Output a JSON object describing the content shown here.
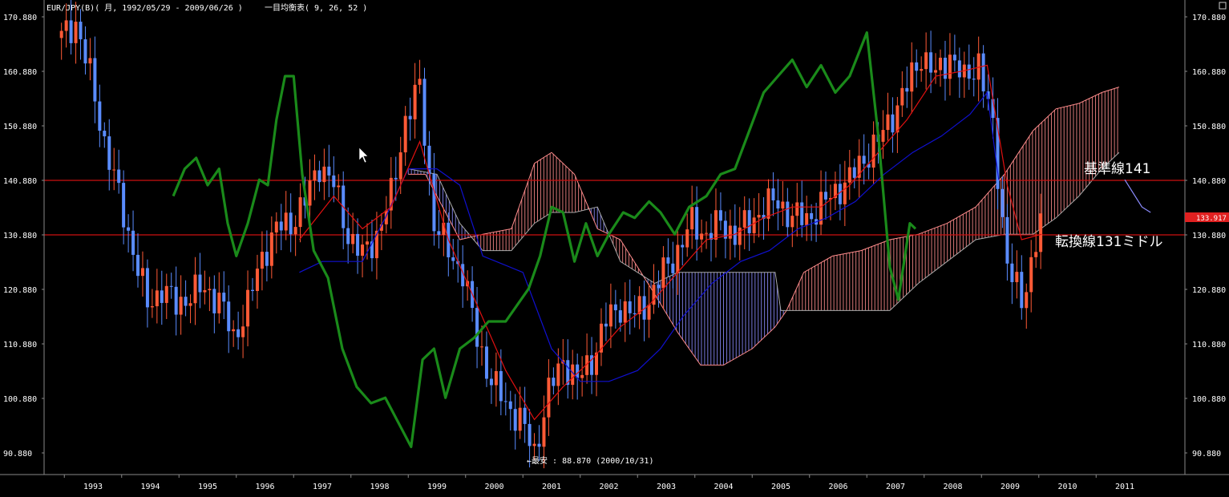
{
  "header": {
    "title": "EUR/JPY(B)( 月, 1992/05/29 - 2009/06/26 )",
    "indicator": "一目均衡表( 9, 26, 52 )"
  },
  "colors": {
    "background": "#000000",
    "up_candle": "#ff5a36",
    "down_candle": "#5a8cff",
    "tenkan": "#e01010",
    "kijun": "#1010d0",
    "chikou": "#1a8a1a",
    "cloud_red": "#ff8c8c",
    "cloud_blue": "#8c8cff",
    "hline": "#cc1111",
    "price_tag": "#e02020"
  },
  "annotations": {
    "kijun_label": "基準線141",
    "tenkan_label": "転換線131ミドル",
    "low_label": "←最安 : 88.870 (2000/10/31)",
    "current_price": "133.917"
  },
  "chart_data": {
    "type": "candlestick",
    "title": "EUR/JPY(B)( 月, 1992/05/29 - 2009/06/26 )",
    "y_ticks": [
      "170.880",
      "160.880",
      "150.880",
      "140.880",
      "130.880",
      "120.880",
      "110.880",
      "100.880",
      "90.880"
    ],
    "ylim": [
      86,
      173
    ],
    "x_ticks": [
      "1993",
      "1994",
      "1995",
      "1996",
      "1997",
      "1998",
      "1999",
      "2000",
      "2001",
      "2002",
      "2003",
      "2004",
      "2005",
      "2006",
      "2007",
      "2008",
      "2009",
      "2010",
      "2011"
    ],
    "horizontal_lines": [
      140.88,
      130.88
    ],
    "current_price": 133.917,
    "low": {
      "value": 88.87,
      "date": "2000/10/31"
    },
    "close_series": [
      [
        1992.45,
        167
      ],
      [
        1992.7,
        170
      ],
      [
        1992.95,
        160
      ],
      [
        1993.2,
        148
      ],
      [
        1993.45,
        138
      ],
      [
        1993.7,
        128
      ],
      [
        1993.95,
        118
      ],
      [
        1994.2,
        121
      ],
      [
        1994.45,
        118
      ],
      [
        1994.7,
        120
      ],
      [
        1994.95,
        121
      ],
      [
        1995.2,
        119
      ],
      [
        1995.45,
        112
      ],
      [
        1995.7,
        118
      ],
      [
        1995.95,
        127
      ],
      [
        1996.2,
        132
      ],
      [
        1996.45,
        133
      ],
      [
        1996.7,
        137
      ],
      [
        1996.95,
        144
      ],
      [
        1997.2,
        140
      ],
      [
        1997.45,
        131
      ],
      [
        1997.7,
        127
      ],
      [
        1997.95,
        131
      ],
      [
        1998.2,
        138
      ],
      [
        1998.45,
        152
      ],
      [
        1998.7,
        158
      ],
      [
        1998.95,
        133
      ],
      [
        1999.2,
        128
      ],
      [
        1999.45,
        124
      ],
      [
        1999.7,
        112
      ],
      [
        1999.95,
        104
      ],
      [
        2000.2,
        100
      ],
      [
        2000.45,
        97
      ],
      [
        2000.7,
        91
      ],
      [
        2000.95,
        102
      ],
      [
        2001.2,
        108
      ],
      [
        2001.45,
        104
      ],
      [
        2001.7,
        108
      ],
      [
        2001.95,
        115
      ],
      [
        2002.2,
        118
      ],
      [
        2002.45,
        116
      ],
      [
        2002.7,
        119
      ],
      [
        2002.95,
        124
      ],
      [
        2003.2,
        128
      ],
      [
        2003.45,
        133
      ],
      [
        2003.7,
        131
      ],
      [
        2003.95,
        133
      ],
      [
        2004.2,
        131
      ],
      [
        2004.45,
        133
      ],
      [
        2004.7,
        136
      ],
      [
        2004.95,
        137
      ],
      [
        2005.2,
        134
      ],
      [
        2005.45,
        134
      ],
      [
        2005.7,
        136
      ],
      [
        2005.95,
        139
      ],
      [
        2006.2,
        141
      ],
      [
        2006.45,
        145
      ],
      [
        2006.7,
        148
      ],
      [
        2006.95,
        153
      ],
      [
        2007.2,
        158
      ],
      [
        2007.45,
        164
      ],
      [
        2007.7,
        160
      ],
      [
        2007.95,
        164
      ],
      [
        2008.2,
        159
      ],
      [
        2008.45,
        163
      ],
      [
        2008.7,
        150
      ],
      [
        2008.95,
        126
      ],
      [
        2009.2,
        118
      ],
      [
        2009.45,
        130
      ],
      [
        2009.55,
        133.9
      ]
    ],
    "tenkan_series": [
      [
        1996.6,
        130
      ],
      [
        1997.2,
        138
      ],
      [
        1997.7,
        132
      ],
      [
        1998.2,
        136
      ],
      [
        1998.7,
        148
      ],
      [
        1999.2,
        130
      ],
      [
        1999.7,
        118
      ],
      [
        2000.2,
        106
      ],
      [
        2000.7,
        97
      ],
      [
        2001.2,
        103
      ],
      [
        2001.7,
        108
      ],
      [
        2002.2,
        114
      ],
      [
        2002.7,
        118
      ],
      [
        2003.2,
        124
      ],
      [
        2003.7,
        130
      ],
      [
        2004.2,
        131
      ],
      [
        2004.7,
        134
      ],
      [
        2005.2,
        136
      ],
      [
        2005.7,
        136
      ],
      [
        2006.2,
        140
      ],
      [
        2006.7,
        146
      ],
      [
        2007.2,
        152
      ],
      [
        2007.7,
        160
      ],
      [
        2008.2,
        161
      ],
      [
        2008.6,
        162
      ],
      [
        2008.95,
        140
      ],
      [
        2009.2,
        130
      ],
      [
        2009.55,
        131
      ]
    ],
    "kijun_series": [
      [
        1996.6,
        124
      ],
      [
        1997.0,
        126
      ],
      [
        1997.7,
        126
      ],
      [
        1998.1,
        134
      ],
      [
        1998.5,
        143
      ],
      [
        1999.0,
        143
      ],
      [
        1999.4,
        140
      ],
      [
        1999.8,
        127
      ],
      [
        2000.5,
        124
      ],
      [
        2001.0,
        110
      ],
      [
        2001.5,
        104
      ],
      [
        2002.0,
        104
      ],
      [
        2002.5,
        106
      ],
      [
        2002.9,
        110
      ],
      [
        2003.3,
        116
      ],
      [
        2003.8,
        122
      ],
      [
        2004.3,
        126
      ],
      [
        2004.8,
        128
      ],
      [
        2005.3,
        132
      ],
      [
        2005.8,
        134
      ],
      [
        2006.3,
        137
      ],
      [
        2006.8,
        142
      ],
      [
        2007.3,
        146
      ],
      [
        2007.8,
        149
      ],
      [
        2008.3,
        153
      ],
      [
        2008.6,
        157
      ],
      [
        2008.8,
        141
      ]
    ],
    "chikou_series": [
      [
        1994.4,
        138
      ],
      [
        1994.6,
        143
      ],
      [
        1994.8,
        145
      ],
      [
        1995.0,
        140
      ],
      [
        1995.2,
        143
      ],
      [
        1995.35,
        133
      ],
      [
        1995.5,
        127
      ],
      [
        1995.7,
        133
      ],
      [
        1995.9,
        141
      ],
      [
        1996.05,
        140
      ],
      [
        1996.2,
        152
      ],
      [
        1996.35,
        160
      ],
      [
        1996.5,
        160
      ],
      [
        1996.65,
        142
      ],
      [
        1996.85,
        128
      ],
      [
        1997.1,
        123
      ],
      [
        1997.35,
        110
      ],
      [
        1997.6,
        103
      ],
      [
        1997.85,
        100
      ],
      [
        1998.1,
        101
      ],
      [
        1998.35,
        96
      ],
      [
        1998.55,
        92
      ],
      [
        1998.75,
        108
      ],
      [
        1998.95,
        110
      ],
      [
        1999.15,
        101
      ],
      [
        1999.4,
        110
      ],
      [
        1999.65,
        112
      ],
      [
        1999.9,
        115
      ],
      [
        2000.2,
        115
      ],
      [
        2000.4,
        118
      ],
      [
        2000.6,
        121
      ],
      [
        2000.8,
        127
      ],
      [
        2001.0,
        136
      ],
      [
        2001.2,
        135
      ],
      [
        2001.4,
        126
      ],
      [
        2001.6,
        133
      ],
      [
        2001.8,
        127
      ],
      [
        2002.0,
        131
      ],
      [
        2002.25,
        135
      ],
      [
        2002.45,
        134
      ],
      [
        2002.7,
        137
      ],
      [
        2002.9,
        135
      ],
      [
        2003.15,
        131
      ],
      [
        2003.4,
        136
      ],
      [
        2003.7,
        138
      ],
      [
        2003.95,
        142
      ],
      [
        2004.2,
        143
      ],
      [
        2004.45,
        150
      ],
      [
        2004.7,
        157
      ],
      [
        2004.95,
        160
      ],
      [
        2005.2,
        163
      ],
      [
        2005.45,
        158
      ],
      [
        2005.7,
        162
      ],
      [
        2005.95,
        157
      ],
      [
        2006.2,
        160
      ],
      [
        2006.5,
        168
      ],
      [
        2006.7,
        149
      ],
      [
        2006.9,
        125
      ],
      [
        2007.05,
        119
      ],
      [
        2007.25,
        133
      ],
      [
        2007.35,
        132
      ]
    ],
    "senkou_a_series": [
      [
        1998.5,
        142
      ],
      [
        1998.8,
        142
      ],
      [
        1999.0,
        138
      ],
      [
        1999.4,
        130
      ],
      [
        1999.8,
        131
      ],
      [
        2000.3,
        132
      ],
      [
        2000.7,
        144
      ],
      [
        2001.0,
        146
      ],
      [
        2001.4,
        142
      ],
      [
        2001.8,
        132
      ],
      [
        2002.2,
        130
      ],
      [
        2002.8,
        120
      ],
      [
        2003.2,
        113
      ],
      [
        2003.6,
        107
      ],
      [
        2004.0,
        107
      ],
      [
        2004.5,
        110
      ],
      [
        2004.9,
        114
      ],
      [
        2005.1,
        117
      ],
      [
        2005.4,
        124
      ],
      [
        2005.9,
        127
      ],
      [
        2006.4,
        128
      ],
      [
        2006.9,
        130
      ],
      [
        2007.4,
        131
      ],
      [
        2007.9,
        133
      ],
      [
        2008.4,
        136
      ],
      [
        2008.9,
        142
      ],
      [
        2009.4,
        150
      ],
      [
        2009.8,
        154
      ],
      [
        2010.2,
        155
      ],
      [
        2010.6,
        157
      ],
      [
        2010.9,
        158
      ]
    ],
    "senkou_b_series": [
      [
        1998.5,
        143
      ],
      [
        1999.0,
        142
      ],
      [
        1999.4,
        133
      ],
      [
        1999.8,
        128
      ],
      [
        2000.3,
        128
      ],
      [
        2000.7,
        133
      ],
      [
        2001.0,
        135
      ],
      [
        2001.4,
        135
      ],
      [
        2001.8,
        136
      ],
      [
        2002.2,
        126
      ],
      [
        2002.8,
        122
      ],
      [
        2003.2,
        124
      ],
      [
        2003.6,
        124
      ],
      [
        2004.0,
        124
      ],
      [
        2004.5,
        124
      ],
      [
        2004.9,
        124
      ],
      [
        2005.0,
        117
      ],
      [
        2005.4,
        117
      ],
      [
        2005.9,
        117
      ],
      [
        2006.4,
        117
      ],
      [
        2006.9,
        117
      ],
      [
        2007.4,
        122
      ],
      [
        2007.9,
        126
      ],
      [
        2008.4,
        130
      ],
      [
        2008.9,
        131
      ],
      [
        2009.4,
        131
      ],
      [
        2009.8,
        134
      ],
      [
        2010.2,
        138
      ],
      [
        2010.6,
        143
      ],
      [
        2010.9,
        146
      ]
    ],
    "future_line": [
      [
        2011.0,
        141
      ],
      [
        2011.3,
        136
      ],
      [
        2011.45,
        135
      ]
    ]
  }
}
